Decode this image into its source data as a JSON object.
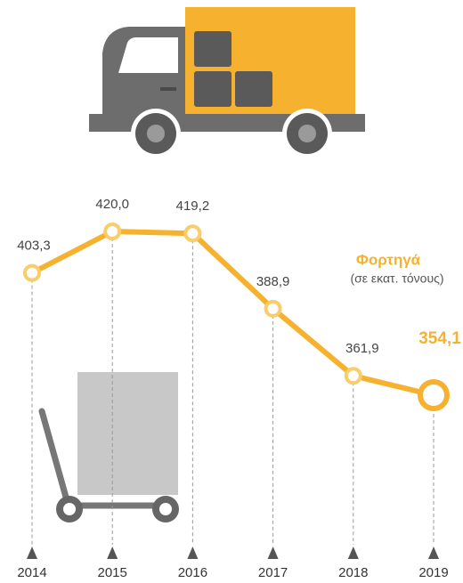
{
  "chart_data": {
    "type": "line",
    "title": "Φορτηγά",
    "subtitle": "(σε εκατ. τόνους)",
    "categories": [
      "2014",
      "2015",
      "2016",
      "2017",
      "2018",
      "2019"
    ],
    "values": [
      403.3,
      420.0,
      419.2,
      388.9,
      361.9,
      354.1
    ],
    "value_labels": [
      "403,3",
      "420,0",
      "419,2",
      "388,9",
      "361,9",
      "354,1"
    ],
    "color": "#f6b22f"
  }
}
